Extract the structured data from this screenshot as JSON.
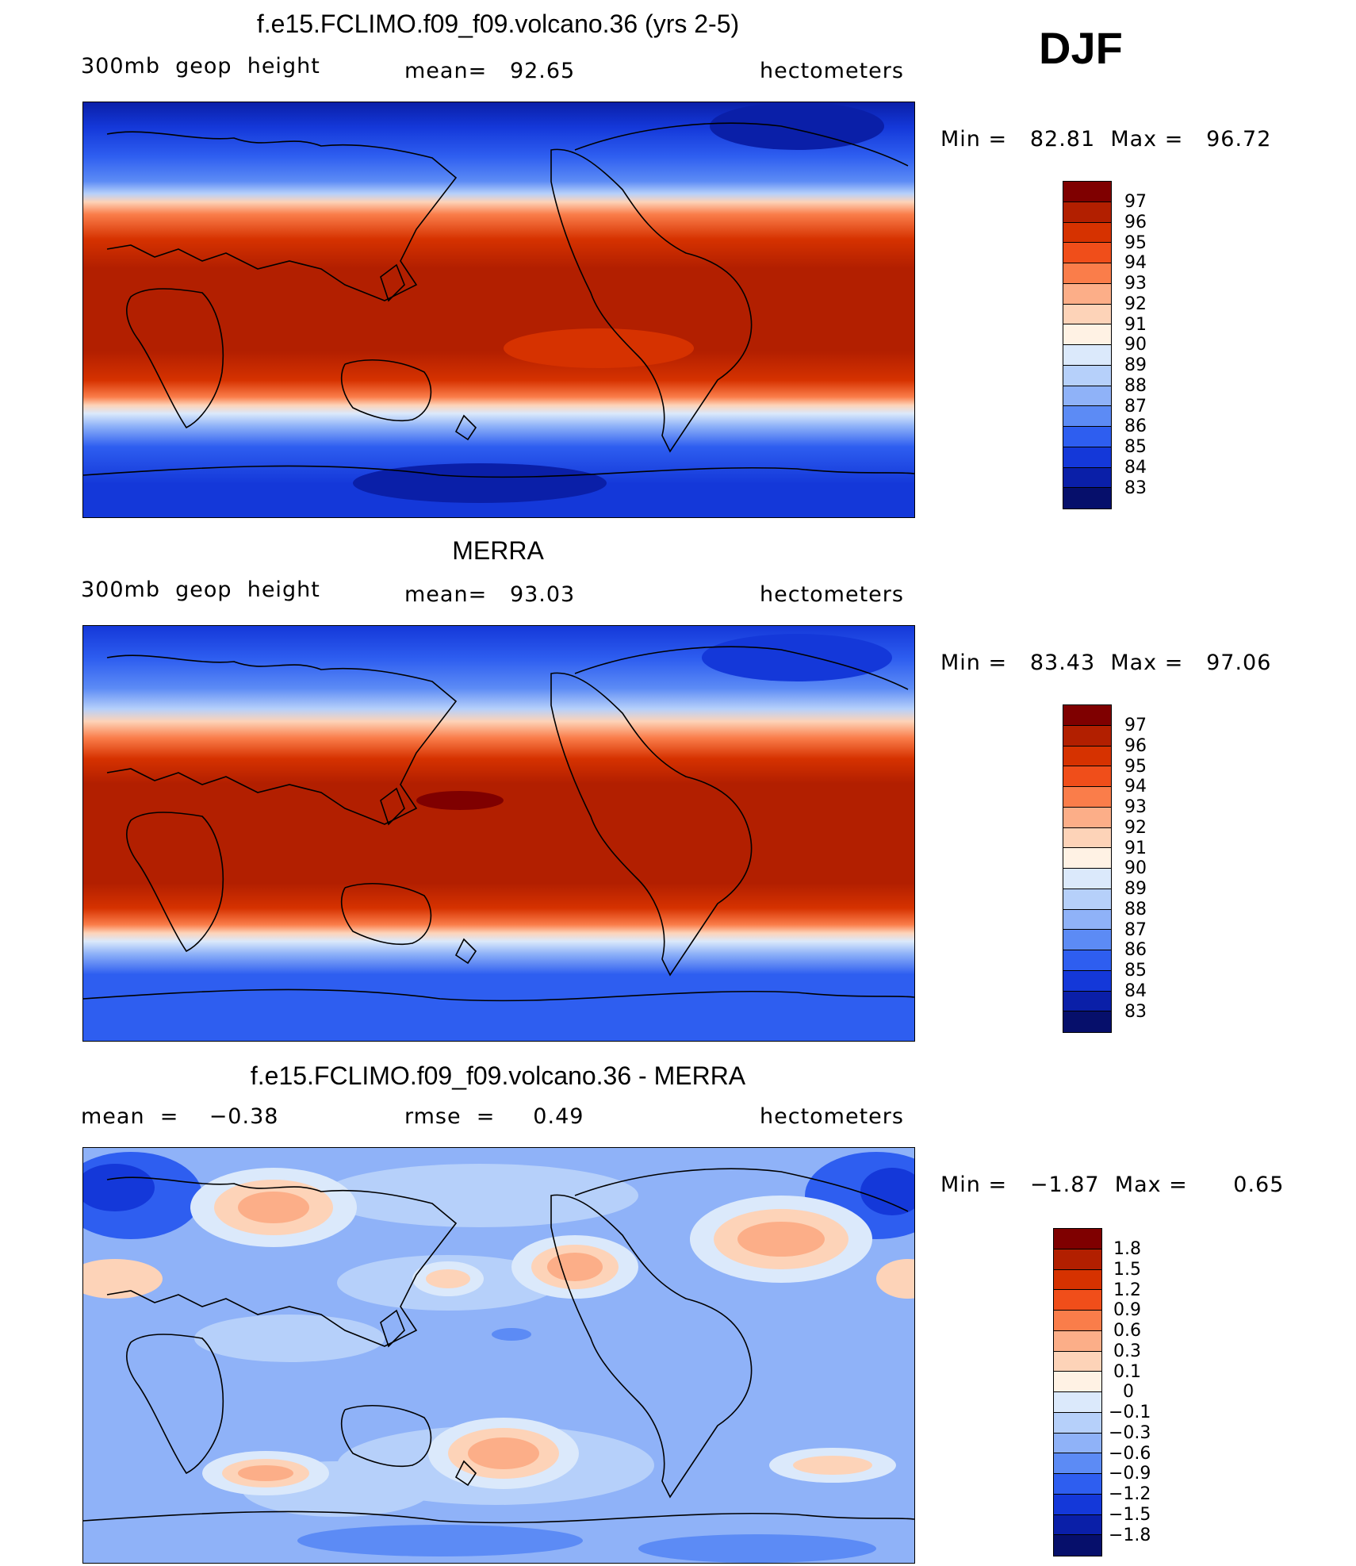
{
  "season": "DJF",
  "units": "hectometers",
  "panels": [
    {
      "title": "f.e15.FCLIMO.f09_f09.volcano.36 (yrs 2-5)",
      "left_label": "300mb  geop  height",
      "center_label": "mean=   92.65",
      "right_label": "hectometers",
      "minmax": "Min =   82.81  Max =   96.72",
      "colorbar_labels": [
        "97",
        "96",
        "95",
        "94",
        "93",
        "92",
        "91",
        "90",
        "89",
        "88",
        "87",
        "86",
        "85",
        "84",
        "83"
      ]
    },
    {
      "title": "MERRA",
      "left_label": "300mb  geop  height",
      "center_label": "mean=   93.03",
      "right_label": "hectometers",
      "minmax": "Min =   83.43  Max =   97.06",
      "colorbar_labels": [
        "97",
        "96",
        "95",
        "94",
        "93",
        "92",
        "91",
        "90",
        "89",
        "88",
        "87",
        "86",
        "85",
        "84",
        "83"
      ]
    },
    {
      "title": "f.e15.FCLIMO.f09_f09.volcano.36 - MERRA",
      "left_label": "mean  =    −0.38",
      "center_label": "rmse  =     0.49",
      "right_label": "hectometers",
      "minmax": "Min =   −1.87  Max =      0.65",
      "colorbar_labels": [
        "1.8",
        "1.5",
        "1.2",
        "0.9",
        "0.6",
        "0.3",
        "0.1",
        "0",
        "−0.1",
        "−0.3",
        "−0.6",
        "−0.9",
        "−1.2",
        "−1.5",
        "−1.8"
      ]
    }
  ],
  "colors": {
    "abs_scale": [
      "#7f0000",
      "#b21f00",
      "#d63200",
      "#f04e1a",
      "#fa7d4a",
      "#fcae88",
      "#fdd3b8",
      "#fff2e4",
      "#dbe9fb",
      "#b6d0fa",
      "#8fb2f8",
      "#5c8bf5",
      "#2e5ef0",
      "#1438d9",
      "#0a1fa8",
      "#060f6b"
    ],
    "diff_scale": [
      "#7f0000",
      "#b21f00",
      "#d63200",
      "#f04e1a",
      "#fa7d4a",
      "#fcae88",
      "#fdd3b8",
      "#fff2e4",
      "#dbe9fb",
      "#b6d0fa",
      "#8fb2f8",
      "#5c8bf5",
      "#2e5ef0",
      "#1438d9",
      "#0a1fa8",
      "#060f6b"
    ]
  }
}
